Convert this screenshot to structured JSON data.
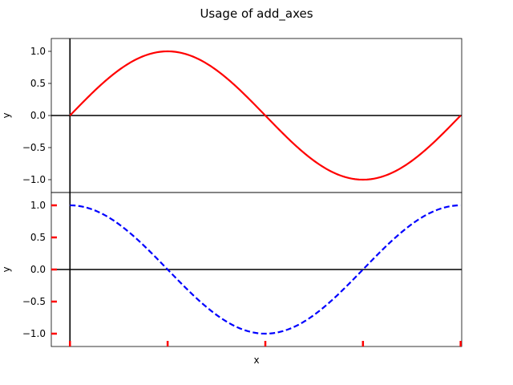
{
  "figure": {
    "title": "Usage of add_axes"
  },
  "colors": {
    "series_top": "#ff0000",
    "series_bottom": "#0000ff",
    "zero_lines": "#000000",
    "tick_marks_bottom": "#ff0000"
  },
  "chart_data": [
    {
      "type": "line",
      "panel": "top",
      "function": "sin(x)",
      "x_domain": [
        0,
        6.283185
      ],
      "xlim": [
        -0.3,
        6.3
      ],
      "ylim": [
        -1.2,
        1.2
      ],
      "ylabel": "y",
      "xlabel": "",
      "y_ticks": [
        1.0,
        0.5,
        0.0,
        -0.5,
        -1.0
      ],
      "y_tick_labels": [
        "1.0",
        "0.5",
        "0.0",
        "−0.5",
        "−1.0"
      ],
      "x_tick_labels_visible": false,
      "reference_lines": [
        "x=0",
        "y=0"
      ],
      "series": [
        {
          "style": "solid",
          "color": "#ff0000",
          "x": [
            0,
            0.785,
            1.571,
            2.356,
            3.142,
            3.927,
            4.712,
            5.498,
            6.283
          ],
          "y": [
            0,
            0.707,
            1.0,
            0.707,
            0,
            -0.707,
            -1.0,
            -0.707,
            0
          ]
        }
      ]
    },
    {
      "type": "line",
      "panel": "bottom",
      "function": "cos(x)",
      "x_domain": [
        0,
        6.283185
      ],
      "xlim": [
        -0.3,
        6.3
      ],
      "ylim": [
        -1.2,
        1.2
      ],
      "ylabel": "y",
      "xlabel": "x",
      "y_ticks": [
        1.0,
        0.5,
        0.0,
        -0.5,
        -1.0
      ],
      "y_tick_labels": [
        "1.0",
        "0.5",
        "0.0",
        "−0.5",
        "−1.0"
      ],
      "x_ticks": [
        0,
        1.571,
        3.142,
        4.712,
        6.283
      ],
      "x_tick_labels_visible": false,
      "tick_color": "red",
      "reference_lines": [
        "x=0",
        "y=0"
      ],
      "series": [
        {
          "style": "dashed",
          "color": "#0000ff",
          "x": [
            0,
            0.785,
            1.571,
            2.356,
            3.142,
            3.927,
            4.712,
            5.498,
            6.283
          ],
          "y": [
            1.0,
            0.707,
            0,
            -0.707,
            -1.0,
            -0.707,
            0,
            0.707,
            1.0
          ]
        }
      ]
    }
  ]
}
